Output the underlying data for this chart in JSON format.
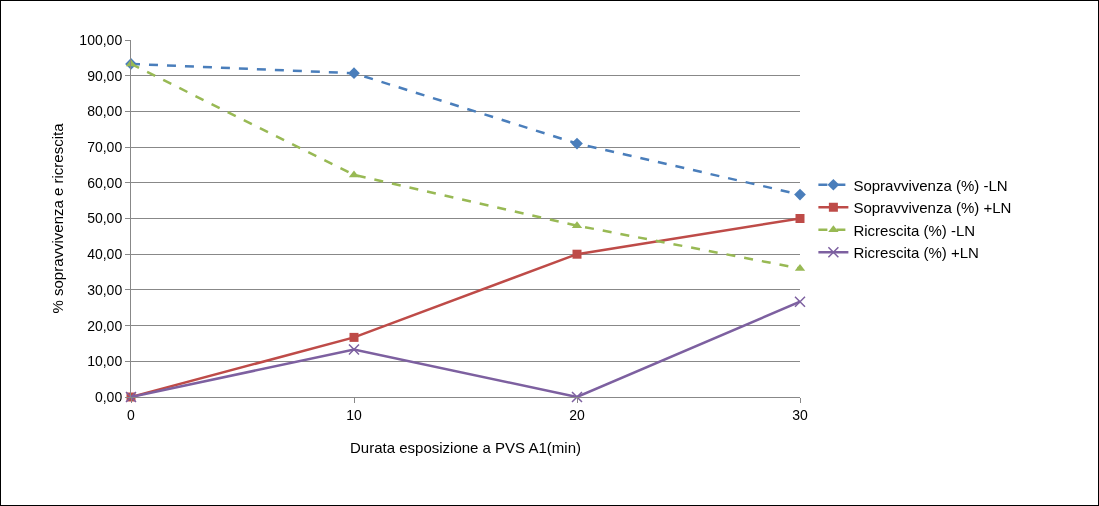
{
  "chart_data": {
    "type": "line",
    "xlabel": "Durata esposizione a PVS A1(min)",
    "ylabel": "% sopravvivenza e ricrescita",
    "x": [
      0,
      10,
      20,
      30
    ],
    "xlim": [
      0,
      30
    ],
    "xticks": [
      0,
      10,
      20,
      30
    ],
    "ylim": [
      0,
      100
    ],
    "yticks": [
      {
        "value": 0,
        "label": "0,00"
      },
      {
        "value": 10,
        "label": "10,00"
      },
      {
        "value": 20,
        "label": "20,00"
      },
      {
        "value": 30,
        "label": "30,00"
      },
      {
        "value": 40,
        "label": "40,00"
      },
      {
        "value": 50,
        "label": "50,00"
      },
      {
        "value": 60,
        "label": "60,00"
      },
      {
        "value": 70,
        "label": "70,00"
      },
      {
        "value": 80,
        "label": "80,00"
      },
      {
        "value": 90,
        "label": "90,00"
      },
      {
        "value": 100,
        "label": "100,00"
      }
    ],
    "grid": "y",
    "legend": "right",
    "series": [
      {
        "name": "Sopravvivenza (%) -LN",
        "color": "#4a7ebb",
        "marker": "diamond",
        "line_style": "dashed",
        "values": [
          93.3,
          90.7,
          71,
          56.7
        ]
      },
      {
        "name": "Sopravvivenza (%) +LN",
        "color": "#be4b48",
        "marker": "square",
        "line_style": "solid",
        "values": [
          0,
          16.7,
          40,
          50
        ]
      },
      {
        "name": "Ricrescita (%) -LN",
        "color": "#98b954",
        "marker": "triangle",
        "line_style": "dashed",
        "values": [
          93.3,
          62.2,
          48,
          36
        ]
      },
      {
        "name": "Ricrescita (%) +LN",
        "color": "#7d60a0",
        "marker": "cross",
        "line_style": "solid",
        "values": [
          0,
          13.3,
          0,
          26.7
        ]
      }
    ]
  }
}
